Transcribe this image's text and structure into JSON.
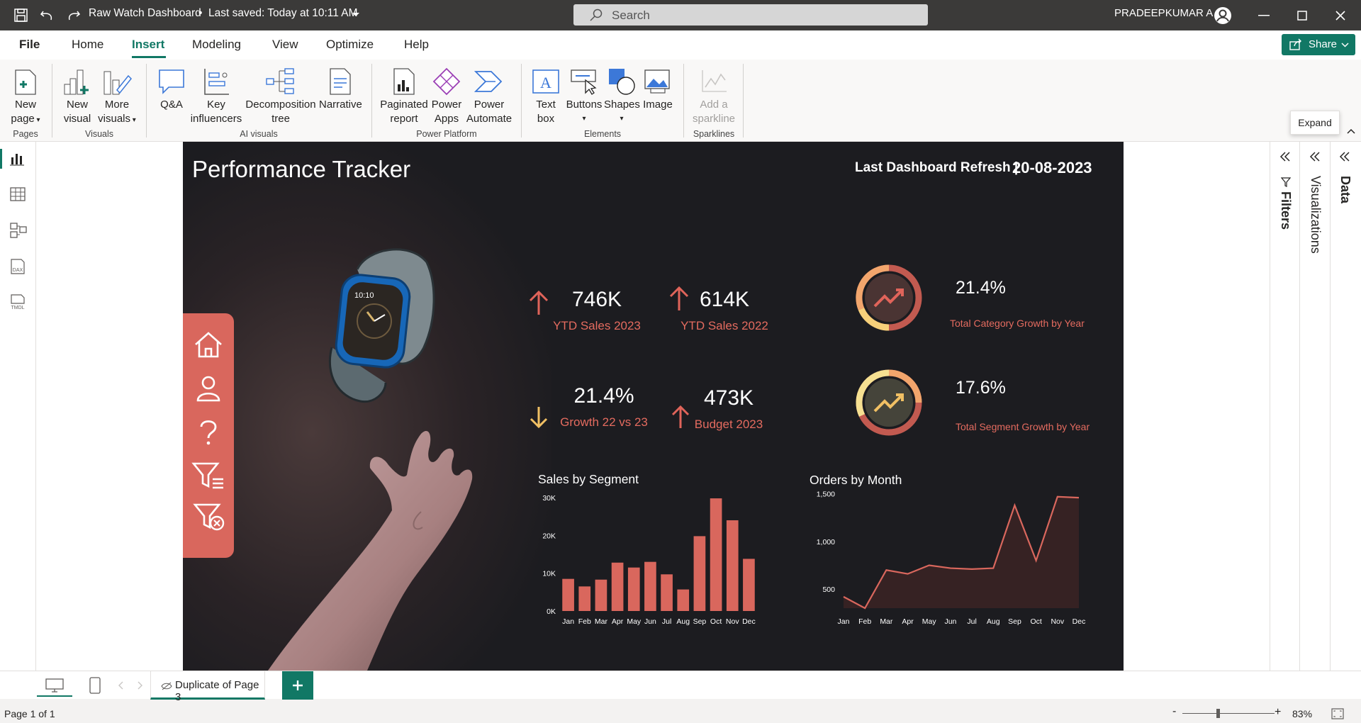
{
  "titlebar": {
    "doc_title": "Raw Watch Dashboard",
    "saved": "Last saved: Today at 10:11 AM",
    "search_placeholder": "Search",
    "user": "PRADEEPKUMAR A"
  },
  "menu": [
    "File",
    "Home",
    "Insert",
    "Modeling",
    "View",
    "Optimize",
    "Help"
  ],
  "share_label": "Share",
  "ribbon": {
    "new_page": [
      "New",
      "page"
    ],
    "new_visual": [
      "New",
      "visual"
    ],
    "more_visuals": [
      "More",
      "visuals"
    ],
    "qa": "Q&A",
    "key_influencers": [
      "Key",
      "influencers"
    ],
    "decomposition": [
      "Decomposition",
      "tree"
    ],
    "narrative": "Narrative",
    "paginated": [
      "Paginated",
      "report"
    ],
    "power_apps": [
      "Power",
      "Apps"
    ],
    "power_automate": [
      "Power",
      "Automate"
    ],
    "text_box": [
      "Text",
      "box"
    ],
    "buttons": "Buttons",
    "shapes": "Shapes",
    "image": "Image",
    "sparkline": [
      "Add a",
      "sparkline"
    ],
    "groups": [
      "Pages",
      "Visuals",
      "AI visuals",
      "Power Platform",
      "Elements",
      "Sparklines"
    ]
  },
  "tooltip": "Expand",
  "report": {
    "title": "Performance Tracker",
    "refresh_label": "Last Dashboard Refresh |",
    "refresh_date": "20-08-2023",
    "watch_time": "10:10",
    "kpis": [
      {
        "value": "746K",
        "label": "YTD Sales 2023",
        "trend": "up"
      },
      {
        "value": "614K",
        "label": "YTD Sales 2022",
        "trend": "up"
      },
      {
        "value": "21.4%",
        "label": "Growth 22 vs 23",
        "trend": "down"
      },
      {
        "value": "473K",
        "label": "Budget 2023",
        "trend": "up"
      }
    ],
    "gauges": [
      {
        "value": "21.4%",
        "label": "Total Category Growth by Year"
      },
      {
        "value": "17.6%",
        "label": "Total Segment Growth by Year"
      }
    ]
  },
  "chart_data": [
    {
      "type": "bar",
      "title": "Sales by Segment",
      "categories": [
        "Jan",
        "Feb",
        "Mar",
        "Apr",
        "May",
        "Jun",
        "Jul",
        "Aug",
        "Sep",
        "Oct",
        "Nov",
        "Dec"
      ],
      "values": [
        8500,
        6500,
        8300,
        12800,
        11500,
        13000,
        9700,
        5700,
        19800,
        29800,
        24000,
        13800
      ],
      "ylim": [
        0,
        30000
      ],
      "yticks": [
        "0K",
        "10K",
        "20K",
        "30K"
      ],
      "color": "#d9675d"
    },
    {
      "type": "area",
      "title": "Orders by Month",
      "categories": [
        "Jan",
        "Feb",
        "Mar",
        "Apr",
        "May",
        "Jun",
        "Jul",
        "Aug",
        "Sep",
        "Oct",
        "Nov",
        "Dec"
      ],
      "values": [
        420,
        300,
        700,
        660,
        750,
        720,
        710,
        720,
        1380,
        800,
        1470,
        1460
      ],
      "ylim": [
        300,
        1550
      ],
      "yticks": [
        "500",
        "1,000",
        "1,500"
      ],
      "color": "#d9675d"
    }
  ],
  "panes": [
    "Filters",
    "Visualizations",
    "Data"
  ],
  "page_tab": "Duplicate of Page 3",
  "status": {
    "page": "Page 1 of 1",
    "zoom": "83%"
  }
}
